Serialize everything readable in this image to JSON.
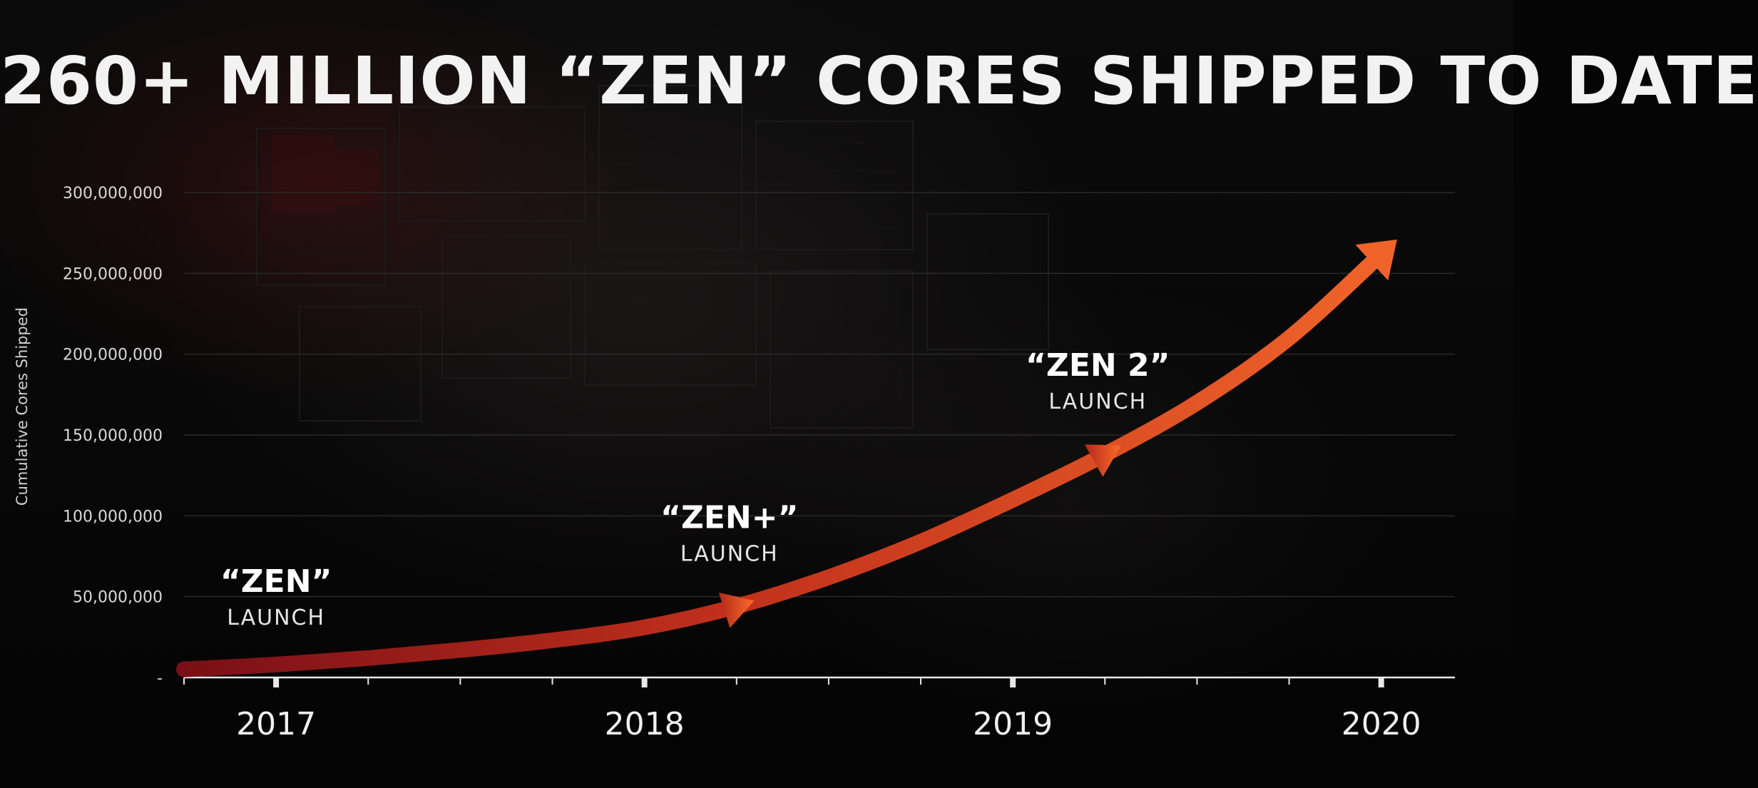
{
  "slide": {
    "title": "260+ MILLION “ZEN” CORES SHIPPED TO DATE"
  },
  "colors": {
    "background": "#050505",
    "arrow_start": "#7a0f17",
    "arrow_end": "#f0642a",
    "axis": "#e8e8e8",
    "grid": "#2a2a2a"
  },
  "chart_data": {
    "type": "line",
    "title": "260+ MILLION “ZEN” CORES SHIPPED TO DATE",
    "xlabel": "",
    "ylabel": "Cumulative Cores Shipped",
    "grid": true,
    "legend": "none",
    "x_tick_labels": [
      "2017",
      "2018",
      "2019",
      "2020"
    ],
    "x_tick_values": [
      2017.0,
      2018.0,
      2019.0,
      2020.0
    ],
    "xlim": [
      2016.75,
      2020.2
    ],
    "ylim": [
      0,
      300000000
    ],
    "y_tick_values": [
      0,
      50000000,
      100000000,
      150000000,
      200000000,
      250000000,
      300000000
    ],
    "y_tick_labels": [
      "-",
      "50,000,000",
      "100,000,000",
      "150,000,000",
      "200,000,000",
      "250,000,000",
      "300,000,000"
    ],
    "series": [
      {
        "x": [
          2016.75,
          2017.0,
          2017.25,
          2017.5,
          2017.75,
          2018.0,
          2018.25,
          2018.5,
          2018.75,
          2019.0,
          2019.25,
          2019.5,
          2019.75,
          2020.0
        ],
        "y": [
          5000000,
          8000000,
          12000000,
          17000000,
          23000000,
          31000000,
          44000000,
          62000000,
          84000000,
          110000000,
          138000000,
          170000000,
          210000000,
          262000000
        ]
      }
    ],
    "annotations": [
      {
        "name": "“ZEN”",
        "sub": "LAUNCH",
        "x": 2017.0
      },
      {
        "name": "“ZEN+”",
        "sub": "LAUNCH",
        "x": 2018.25
      },
      {
        "name": "“ZEN 2”",
        "sub": "LAUNCH",
        "x": 2019.25
      }
    ]
  }
}
